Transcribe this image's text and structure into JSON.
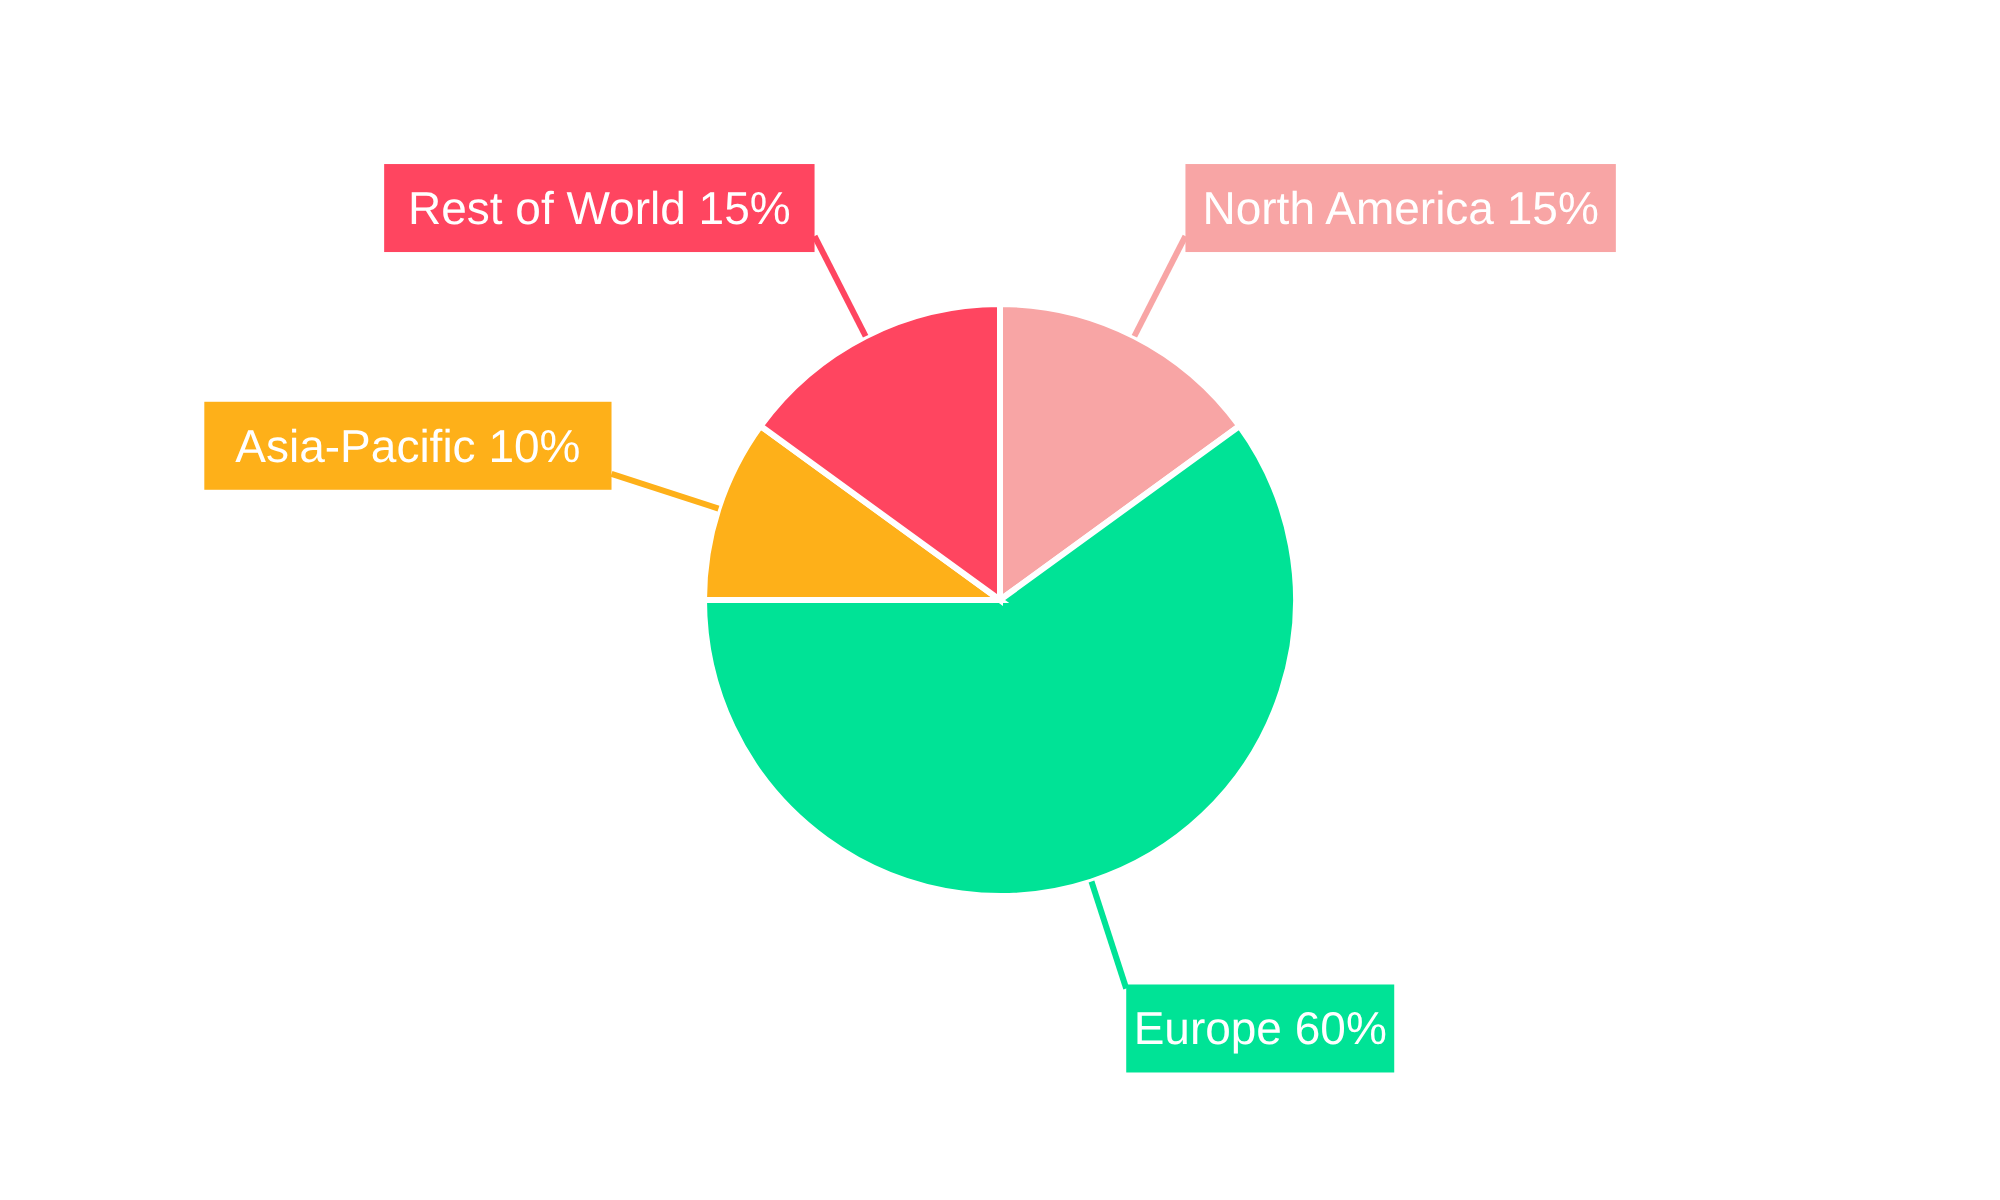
{
  "chart_data": {
    "type": "pie",
    "categories": [
      "North America",
      "Europe",
      "Asia-Pacific",
      "Rest of World"
    ],
    "values": [
      15,
      60,
      10,
      15
    ],
    "colors": [
      "#f8a5a5",
      "#00e396",
      "#feb019",
      "#ff4560"
    ],
    "value_labels": [
      "15%",
      "60%",
      "10%",
      "15%"
    ]
  }
}
